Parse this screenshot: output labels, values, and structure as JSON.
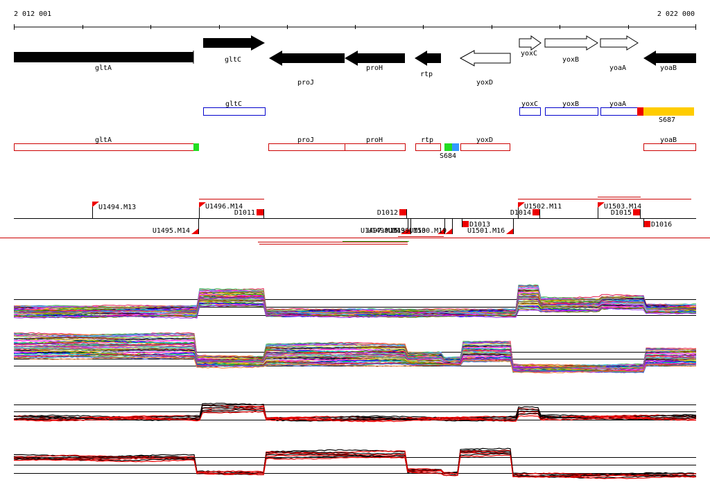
{
  "coords": {
    "start_label": "2 012 001",
    "end_label": "2 022 000"
  },
  "genes": [
    {
      "name": "gltA"
    },
    {
      "name": "gltC"
    },
    {
      "name": "proJ"
    },
    {
      "name": "proH"
    },
    {
      "name": "rtp"
    },
    {
      "name": "yoxD"
    },
    {
      "name": "yoxC"
    },
    {
      "name": "yoxB"
    },
    {
      "name": "yoaA"
    },
    {
      "name": "yoaB"
    }
  ],
  "forward_transcripts": [
    {
      "label": "gltC"
    },
    {
      "label": "yoxC"
    },
    {
      "label": "yoxB"
    },
    {
      "label": "yoaA"
    },
    {
      "label": "S687"
    }
  ],
  "reverse_transcripts": [
    {
      "label": "gltA"
    },
    {
      "label": "proJ"
    },
    {
      "label": "proH"
    },
    {
      "label": "rtp"
    },
    {
      "label": "S684"
    },
    {
      "label": "yoxD"
    },
    {
      "label": "yoaB"
    }
  ],
  "features_up": [
    {
      "label": "U1494.M13"
    },
    {
      "label": "U1496.M14"
    },
    {
      "label": "D1011"
    },
    {
      "label": "D1012"
    },
    {
      "label": "D1014"
    },
    {
      "label": "U1502.M11"
    },
    {
      "label": "U1503.M14"
    },
    {
      "label": "D1015"
    }
  ],
  "features_down": [
    {
      "label": "U1495.M14"
    },
    {
      "label": "U1497.M15"
    },
    {
      "label": "U1498.M13"
    },
    {
      "label": "U1499.M13"
    },
    {
      "label": "U1500.M19"
    },
    {
      "label": "D1013"
    },
    {
      "label": "U1501.M16"
    },
    {
      "label": "D1016"
    }
  ],
  "colors": {
    "gene_fill": "#000000",
    "transcript_forward": "#0000cc",
    "transcript_reverse": "#cc0000",
    "promoter_green": "#22dd22",
    "promoter_blue": "#3399ff",
    "promoter_red": "#ee0000",
    "promoter_yellow": "#ffcc00",
    "mean_signal_a": "#000000",
    "mean_signal_b": "#ee0000"
  }
}
